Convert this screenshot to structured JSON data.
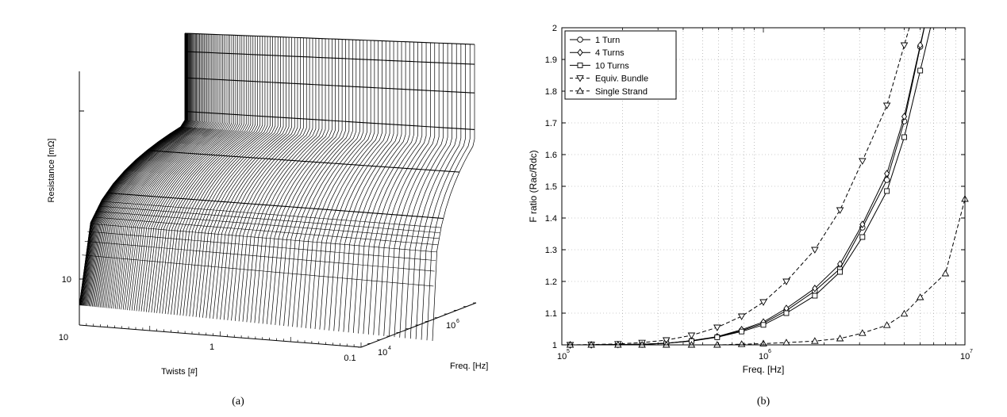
{
  "chart_data": [
    {
      "type": "surface",
      "caption": "(a)",
      "xlabel": "Twists [#]",
      "ylabel": "Freq. [Hz]",
      "zlabel": "Resistance [mΩ]",
      "x_ticks": [
        "10",
        "1",
        "0.1"
      ],
      "y_ticks": [
        "10^4",
        "10^6"
      ],
      "z_ticks": [
        "10"
      ]
    },
    {
      "type": "line",
      "caption": "(b)",
      "xlabel": "Freq. [Hz]",
      "ylabel": "F ratio (Rac/Rdc)",
      "xscale": "log",
      "xlim": [
        100000,
        10000000
      ],
      "ylim": [
        1,
        2
      ],
      "x_ticks": [
        "10^5",
        "10^6",
        "10^7"
      ],
      "y_ticks": [
        "1",
        "1.1",
        "1.2",
        "1.3",
        "1.4",
        "1.5",
        "1.6",
        "1.7",
        "1.8",
        "1.9",
        "2"
      ],
      "grid": true,
      "legend_position": "top-left",
      "series": [
        {
          "name": "1 Turn",
          "marker": "circle",
          "line": "solid",
          "x": [
            110000,
            140000,
            190000,
            250000,
            330000,
            440000,
            590000,
            780000,
            1000000,
            1300000,
            1800000,
            2400000,
            3100000,
            4100000,
            5000000,
            6000000
          ],
          "y": [
            1.0,
            1.0,
            1.001,
            1.002,
            1.005,
            1.013,
            1.025,
            1.045,
            1.068,
            1.108,
            1.17,
            1.24,
            1.37,
            1.52,
            1.705,
            1.94
          ]
        },
        {
          "name": "4 Turns",
          "marker": "diamond",
          "line": "solid",
          "x": [
            110000,
            140000,
            190000,
            250000,
            330000,
            440000,
            590000,
            780000,
            1000000,
            1300000,
            1800000,
            2400000,
            3100000,
            4100000,
            5000000,
            6000000
          ],
          "y": [
            1.0,
            1.0,
            1.001,
            1.002,
            1.005,
            1.013,
            1.026,
            1.048,
            1.072,
            1.115,
            1.178,
            1.255,
            1.38,
            1.54,
            1.72,
            1.945
          ]
        },
        {
          "name": "10 Turns",
          "marker": "square",
          "line": "solid",
          "x": [
            110000,
            140000,
            190000,
            250000,
            330000,
            440000,
            590000,
            780000,
            1000000,
            1300000,
            1800000,
            2400000,
            3100000,
            4100000,
            5000000,
            6000000
          ],
          "y": [
            1.0,
            1.0,
            1.001,
            1.002,
            1.005,
            1.012,
            1.024,
            1.042,
            1.063,
            1.1,
            1.155,
            1.23,
            1.34,
            1.485,
            1.655,
            1.865
          ]
        },
        {
          "name": "Equiv. Bundle",
          "marker": "triangle-down",
          "line": "dashed",
          "x": [
            110000,
            140000,
            190000,
            250000,
            330000,
            440000,
            590000,
            780000,
            1000000,
            1300000,
            1800000,
            2400000,
            3100000,
            4100000,
            5000000
          ],
          "y": [
            1.0,
            1.001,
            1.003,
            1.007,
            1.015,
            1.03,
            1.055,
            1.09,
            1.135,
            1.2,
            1.3,
            1.425,
            1.58,
            1.755,
            1.945
          ]
        },
        {
          "name": "Single Strand",
          "marker": "triangle-up",
          "line": "dashed",
          "x": [
            110000,
            140000,
            190000,
            250000,
            330000,
            440000,
            590000,
            780000,
            1000000,
            1300000,
            1800000,
            2400000,
            3100000,
            4100000,
            5000000,
            6000000,
            8000000,
            10000000
          ],
          "y": [
            1.0,
            1.0,
            1.0,
            1.0,
            1.0,
            1.0,
            1.0,
            1.002,
            1.004,
            1.007,
            1.012,
            1.02,
            1.037,
            1.062,
            1.098,
            1.15,
            1.225,
            1.46
          ]
        }
      ]
    }
  ]
}
